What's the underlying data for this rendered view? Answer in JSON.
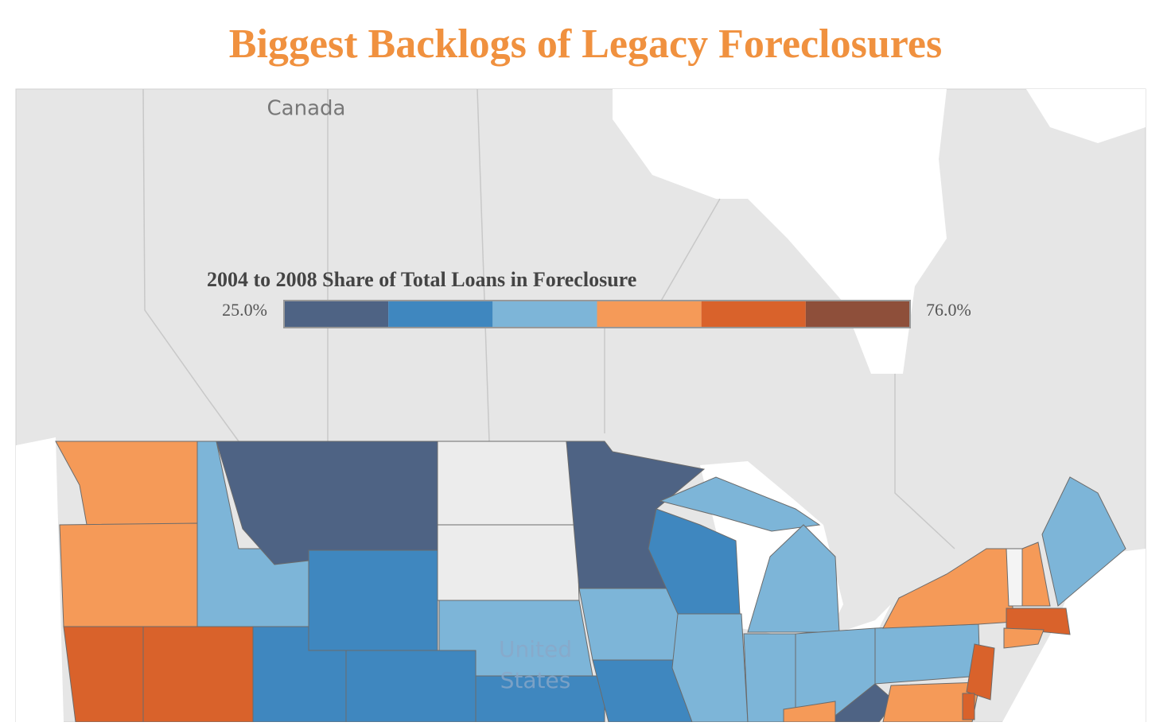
{
  "title": "Biggest Backlogs of Legacy Foreclosures",
  "legend": {
    "title": "2004 to 2008 Share of Total Loans in Foreclosure",
    "min": {
      "value": 25,
      "label": "25.0%"
    },
    "max": {
      "value": 76,
      "label": "76.0%"
    },
    "colors": [
      "#4e6384",
      "#3f87bf",
      "#7db5d8",
      "#f59a58",
      "#d9622b",
      "#8e4f3a"
    ]
  },
  "map_labels": {
    "country_north": "Canada",
    "country_south": [
      "United",
      "States"
    ]
  }
}
